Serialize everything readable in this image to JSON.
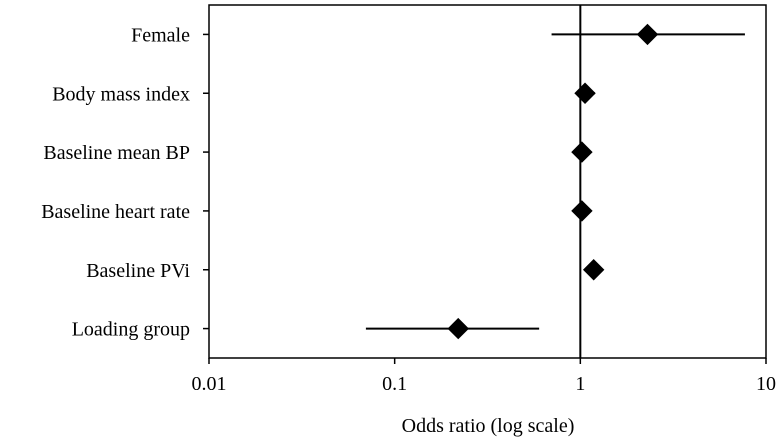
{
  "chart_data": {
    "type": "scatter",
    "subtype": "forest-plot",
    "title": "",
    "xlabel": "Odds ratio (log scale)",
    "ylabel": "",
    "x_scale": "log",
    "xlim": [
      0.01,
      10
    ],
    "x_ticks": [
      {
        "value": 0.01,
        "label": "0.01"
      },
      {
        "value": 0.1,
        "label": "0.1"
      },
      {
        "value": 1,
        "label": "1"
      },
      {
        "value": 10,
        "label": "10"
      }
    ],
    "reference_line": 1,
    "grid": false,
    "marker": "diamond",
    "marker_color": "#000000",
    "rows": [
      {
        "label": "Female",
        "or": 2.3,
        "ci_low": 0.7,
        "ci_high": 7.7
      },
      {
        "label": "Body mass index",
        "or": 1.06,
        "ci_low": 0.95,
        "ci_high": 1.2
      },
      {
        "label": "Baseline mean BP",
        "or": 1.02,
        "ci_low": 0.98,
        "ci_high": 1.06
      },
      {
        "label": "Baseline heart rate",
        "or": 1.02,
        "ci_low": 0.98,
        "ci_high": 1.06
      },
      {
        "label": "Baseline PVi",
        "or": 1.18,
        "ci_low": 1.1,
        "ci_high": 1.27
      },
      {
        "label": "Loading group",
        "or": 0.22,
        "ci_low": 0.07,
        "ci_high": 0.6
      }
    ]
  }
}
